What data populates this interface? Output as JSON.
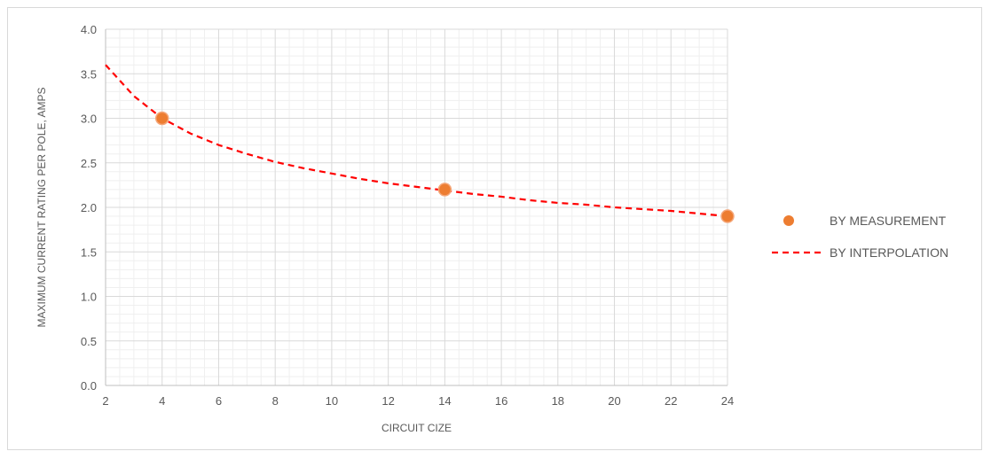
{
  "chart_data": {
    "type": "scatter",
    "title": "",
    "xlabel": "CIRCUIT CIZE",
    "ylabel": "MAXIMUM CURRENT RATING PER POLE, AMPS",
    "xlim": [
      2,
      24
    ],
    "ylim": [
      0,
      4
    ],
    "x_ticks": [
      "2",
      "4",
      "6",
      "8",
      "10",
      "12",
      "14",
      "16",
      "18",
      "20",
      "22",
      "24"
    ],
    "y_ticks": [
      "0.0",
      "0.5",
      "1.0",
      "1.5",
      "2.0",
      "2.5",
      "3.0",
      "3.5",
      "4.0"
    ],
    "x_tick_values": [
      2,
      4,
      6,
      8,
      10,
      12,
      14,
      16,
      18,
      20,
      22,
      24
    ],
    "y_tick_values": [
      0,
      0.5,
      1,
      1.5,
      2,
      2.5,
      3,
      3.5,
      4
    ],
    "grid": true,
    "minor_grid": true,
    "legend_position": "right",
    "series": [
      {
        "name": "BY MEASUREMENT",
        "kind": "scatter",
        "color": "#ED7D31",
        "x": [
          4,
          14,
          24
        ],
        "y": [
          3.0,
          2.2,
          1.9
        ]
      },
      {
        "name": "BY INTERPOLATION",
        "kind": "line",
        "style": "dashed",
        "color": "#FF0000",
        "x": [
          2,
          3,
          4,
          5,
          6,
          7,
          8,
          9,
          10,
          11,
          12,
          13,
          14,
          15,
          16,
          17,
          18,
          19,
          20,
          21,
          22,
          23,
          24
        ],
        "y": [
          3.6,
          3.25,
          3.0,
          2.83,
          2.7,
          2.6,
          2.51,
          2.44,
          2.38,
          2.32,
          2.27,
          2.23,
          2.19,
          2.15,
          2.12,
          2.08,
          2.05,
          2.03,
          2.0,
          1.98,
          1.96,
          1.93,
          1.9
        ]
      }
    ]
  }
}
